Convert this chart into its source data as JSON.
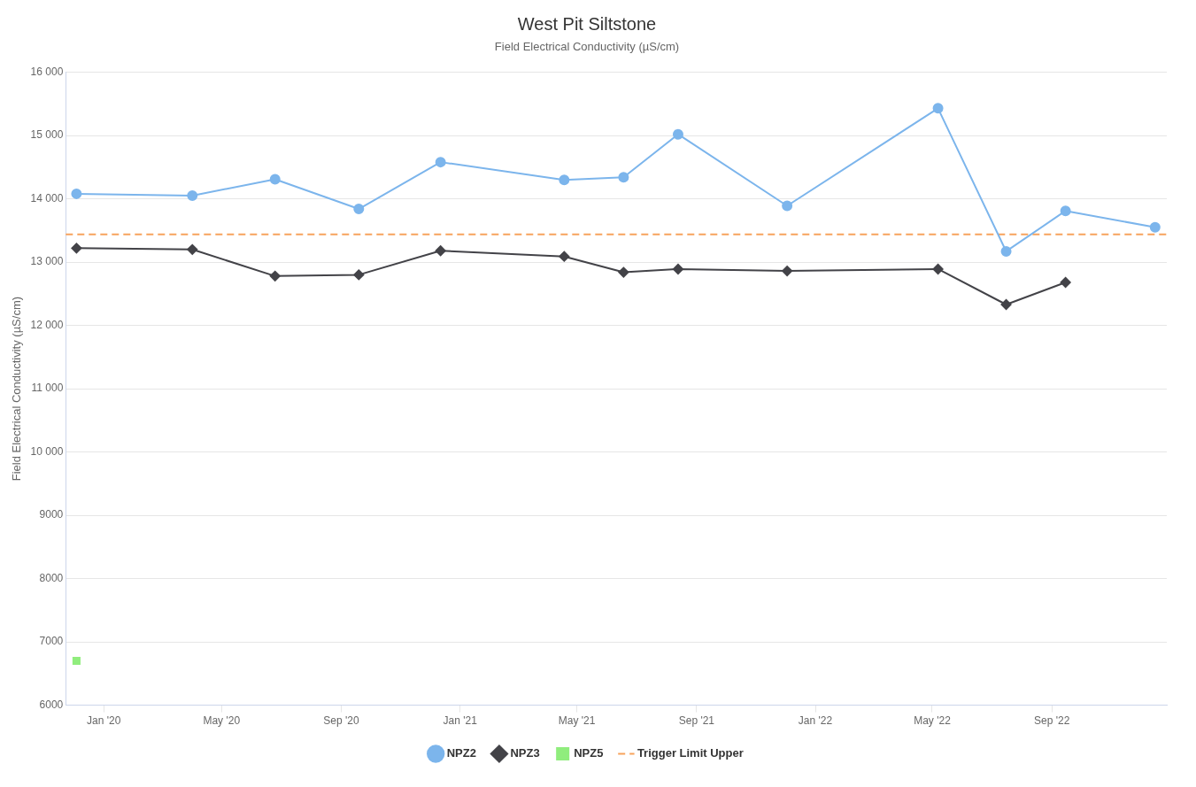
{
  "chart_data": {
    "type": "line",
    "title": "West Pit Siltstone",
    "subtitle": "Field Electrical Conductivity (µS/cm)",
    "ylabel": "Field Electrical Conductivity (µS/cm)",
    "series": [
      {
        "name": "NPZ2",
        "color": "#7cb5ec",
        "marker": "circle",
        "x": [
          "2019-12-04",
          "2020-04-01",
          "2020-06-25",
          "2020-09-19",
          "2020-12-12",
          "2021-04-18",
          "2021-06-18",
          "2021-08-13",
          "2021-12-03",
          "2022-05-07",
          "2022-07-16",
          "2022-09-15",
          "2022-12-16"
        ],
        "values": [
          14080,
          14050,
          14310,
          13840,
          14580,
          14300,
          14340,
          15020,
          13890,
          15430,
          13170,
          13810,
          13550
        ]
      },
      {
        "name": "NPZ3",
        "color": "#434348",
        "marker": "diamond",
        "x": [
          "2019-12-04",
          "2020-04-01",
          "2020-06-25",
          "2020-09-19",
          "2020-12-12",
          "2021-04-18",
          "2021-06-18",
          "2021-08-13",
          "2021-12-03",
          "2022-05-07",
          "2022-07-16",
          "2022-09-15"
        ],
        "values": [
          13220,
          13200,
          12780,
          12800,
          13180,
          13090,
          12840,
          12890,
          12860,
          12890,
          12330,
          12680
        ]
      },
      {
        "name": "NPZ5",
        "color": "#90ed7d",
        "marker": "square",
        "x": [
          "2019-12-04"
        ],
        "values": [
          6700
        ]
      }
    ],
    "ref_lines": [
      {
        "axis": "y",
        "value": 13440,
        "label": "Trigger Limit Upper",
        "color": "#f7a35c",
        "line_style": "dashed"
      }
    ],
    "xlim": [
      "2019-11-23",
      "2022-12-28"
    ],
    "xticks": [
      {
        "value": "2020-01-01",
        "label": "Jan '20"
      },
      {
        "value": "2020-05-01",
        "label": "May '20"
      },
      {
        "value": "2020-09-01",
        "label": "Sep '20"
      },
      {
        "value": "2021-01-01",
        "label": "Jan '21"
      },
      {
        "value": "2021-05-01",
        "label": "May '21"
      },
      {
        "value": "2021-09-01",
        "label": "Sep '21"
      },
      {
        "value": "2022-01-01",
        "label": "Jan '22"
      },
      {
        "value": "2022-05-01",
        "label": "May '22"
      },
      {
        "value": "2022-09-01",
        "label": "Sep '22"
      }
    ],
    "ylim": [
      6000,
      16000
    ],
    "yticks": [
      6000,
      7000,
      8000,
      9000,
      {
        "value": 10000,
        "label": "10 000"
      },
      {
        "value": 11000,
        "label": "11 000"
      },
      {
        "value": 12000,
        "label": "12 000"
      },
      {
        "value": 13000,
        "label": "13 000"
      },
      {
        "value": 14000,
        "label": "14 000"
      },
      {
        "value": 15000,
        "label": "15 000"
      },
      {
        "value": 16000,
        "label": "16 000"
      }
    ],
    "grid": "y",
    "legend": "bottom"
  }
}
